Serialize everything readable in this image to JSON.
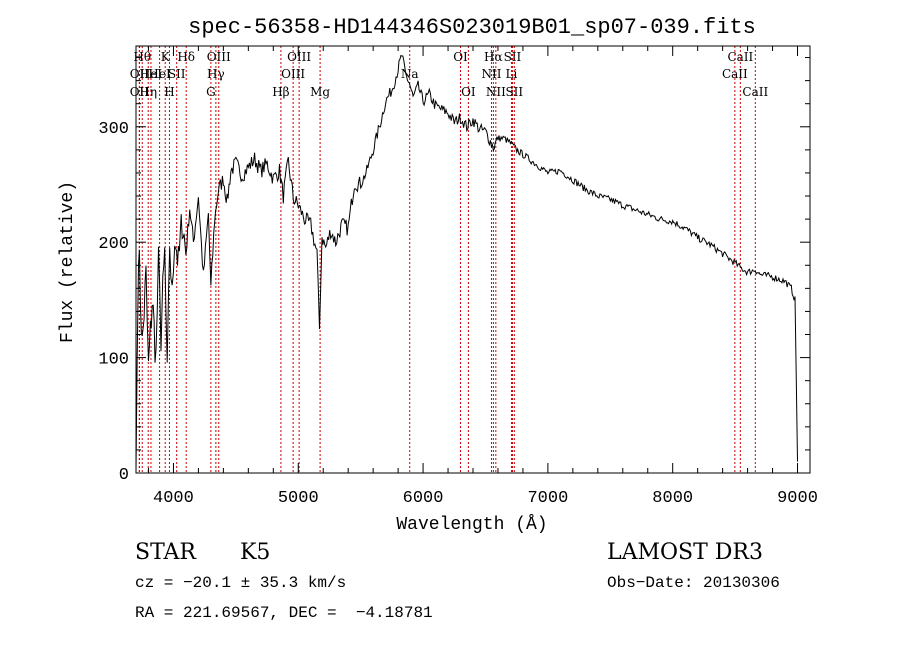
{
  "chart_data": {
    "type": "line",
    "title": "spec-56358-HD144346S023019B01_sp07-039.fits",
    "xlabel": "Wavelength (Å)",
    "ylabel": "Flux (relative)",
    "xlim": [
      3700,
      9100
    ],
    "ylim": [
      0,
      370
    ],
    "xticks": [
      4000,
      5000,
      6000,
      7000,
      8000,
      9000
    ],
    "yticks": [
      0,
      100,
      200,
      300
    ],
    "grid": false,
    "series": [
      {
        "color": "#000000",
        "x": [
          3700,
          3720,
          3750,
          3780,
          3800,
          3830,
          3860,
          3880,
          3900,
          3930,
          3950,
          3970,
          3990,
          4010,
          4040,
          4070,
          4100,
          4130,
          4160,
          4200,
          4240,
          4280,
          4300,
          4330,
          4360,
          4400,
          4430,
          4460,
          4500,
          4550,
          4600,
          4650,
          4700,
          4750,
          4800,
          4850,
          4880,
          4920,
          4960,
          5000,
          5050,
          5100,
          5150,
          5170,
          5190,
          5220,
          5260,
          5300,
          5350,
          5400,
          5450,
          5500,
          5550,
          5600,
          5650,
          5700,
          5750,
          5800,
          5830,
          5860,
          5890,
          5920,
          5960,
          6000,
          6050,
          6100,
          6150,
          6200,
          6250,
          6300,
          6350,
          6400,
          6450,
          6500,
          6563,
          6600,
          6650,
          6700,
          6750,
          6800,
          6900,
          7000,
          7100,
          7200,
          7300,
          7400,
          7500,
          7600,
          7700,
          7800,
          7900,
          8000,
          8100,
          8200,
          8300,
          8400,
          8500,
          8542,
          8600,
          8662,
          8700,
          8800,
          8900,
          8950,
          8980,
          9000
        ],
        "y": [
          2,
          200,
          110,
          170,
          90,
          150,
          100,
          180,
          120,
          190,
          80,
          200,
          150,
          210,
          180,
          220,
          190,
          230,
          200,
          240,
          170,
          225,
          160,
          220,
          245,
          255,
          235,
          262,
          268,
          258,
          265,
          272,
          262,
          268,
          255,
          262,
          240,
          270,
          238,
          232,
          220,
          215,
          190,
          125,
          205,
          195,
          210,
          200,
          215,
          212,
          252,
          250,
          262,
          280,
          300,
          322,
          332,
          350,
          362,
          345,
          338,
          325,
          335,
          322,
          328,
          318,
          315,
          312,
          304,
          308,
          300,
          306,
          298,
          296,
          282,
          290,
          290,
          286,
          280,
          276,
          268,
          260,
          262,
          254,
          246,
          240,
          237,
          232,
          228,
          224,
          220,
          218,
          212,
          204,
          198,
          190,
          182,
          178,
          174,
          176,
          172,
          170,
          166,
          160,
          150,
          10
        ]
      }
    ],
    "lines": [
      {
        "x": 3727,
        "label": "OII",
        "row": 2
      },
      {
        "x": 3727,
        "label": "OII",
        "row": 3
      },
      {
        "x": 3750,
        "label": "Hθ",
        "row": 1
      },
      {
        "x": 3798,
        "label": "Hη",
        "row": 3
      },
      {
        "x": 3820,
        "label": "HeI",
        "row": 2
      },
      {
        "x": 3889,
        "label": "HeI",
        "row": 2
      },
      {
        "x": 3934,
        "label": "K",
        "row": 1
      },
      {
        "x": 3968,
        "label": "H",
        "row": 3
      },
      {
        "x": 4026,
        "label": "SII",
        "row": 2
      },
      {
        "x": 4102,
        "label": "Hδ",
        "row": 1
      },
      {
        "x": 4300,
        "label": "G",
        "row": 3
      },
      {
        "x": 4340,
        "label": "Hγ",
        "row": 2
      },
      {
        "x": 4363,
        "label": "OIII",
        "row": 1
      },
      {
        "x": 4861,
        "label": "Hβ",
        "row": 3
      },
      {
        "x": 4959,
        "label": "OIII",
        "row": 2
      },
      {
        "x": 5007,
        "label": "OIII",
        "row": 1
      },
      {
        "x": 5175,
        "label": "Mg",
        "row": 3
      },
      {
        "x": 5893,
        "label": "Na",
        "row": 2
      },
      {
        "x": 6300,
        "label": "OI",
        "row": 1
      },
      {
        "x": 6363,
        "label": "OI",
        "row": 3
      },
      {
        "x": 6548,
        "label": "NII",
        "row": 2
      },
      {
        "x": 6563,
        "label": "Hα",
        "row": 1
      },
      {
        "x": 6583,
        "label": "NII",
        "row": 3
      },
      {
        "x": 6708,
        "label": "Li",
        "row": 2
      },
      {
        "x": 6716,
        "label": "SII",
        "row": 1
      },
      {
        "x": 6731,
        "label": "SII",
        "row": 3
      },
      {
        "x": 8498,
        "label": "CaII",
        "row": 2
      },
      {
        "x": 8542,
        "label": "CaII",
        "row": 1
      },
      {
        "x": 8662,
        "label": "CaII",
        "row": 3
      }
    ],
    "line_color": "#cc0000"
  },
  "info": {
    "object_class": "STAR",
    "subclass": "K5",
    "survey": "LAMOST DR3",
    "cz": "cz = −20.1 ± 35.3 km/s",
    "obs_date": "Obs−Date: 20130306",
    "radec": "RA = 221.69567, DEC =  −4.18781"
  }
}
